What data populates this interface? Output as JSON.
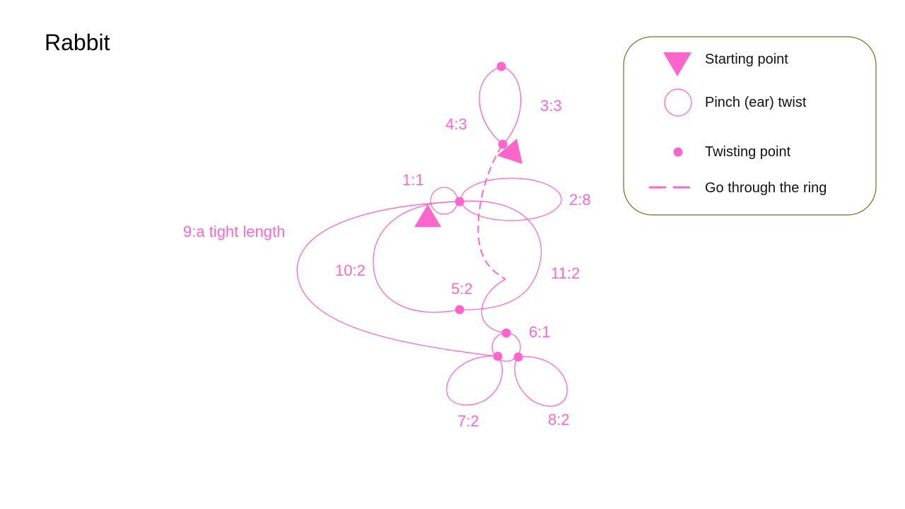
{
  "title": "Rabbit",
  "colors": {
    "accent": "#ff66cc",
    "legend_border": "#7a6a2a",
    "text": "#111111"
  },
  "legend": {
    "starting_point": "Starting point",
    "pinch_twist": "Pinch (ear) twist",
    "twisting_point": "Twisting point",
    "go_through": "Go through the ring"
  },
  "labels": {
    "b1": "1:1",
    "b2": "2:8",
    "b3": "3:3",
    "b4": "4:3",
    "b5": "5:2",
    "b6": "6:1",
    "b7": "7:2",
    "b8": "8:2",
    "b9": "9:a tight length",
    "b10": "10:2",
    "b11": "11:2"
  }
}
